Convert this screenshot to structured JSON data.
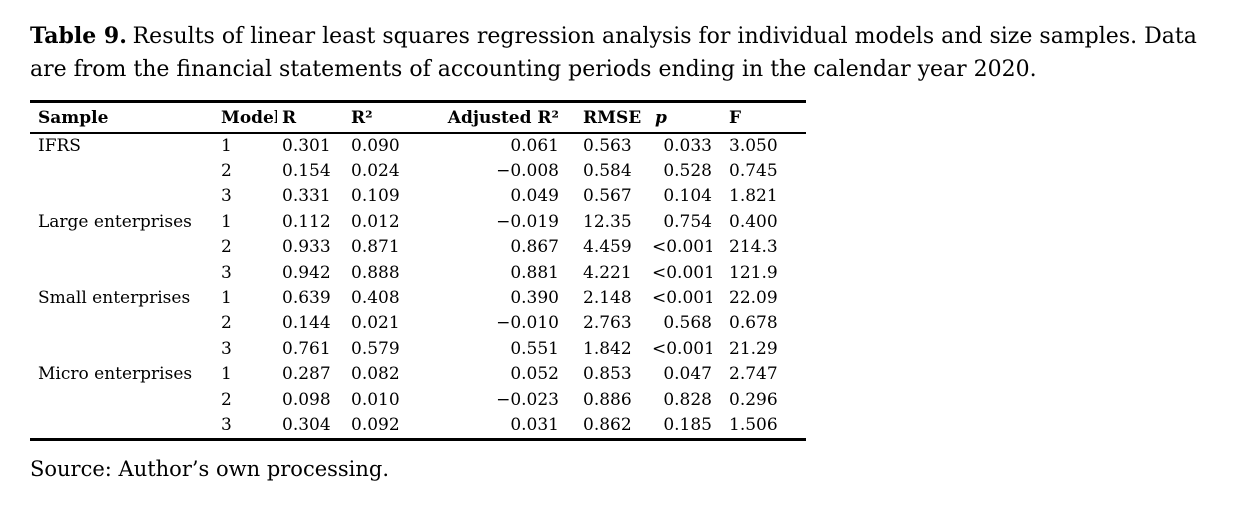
{
  "caption": {
    "label": "Table 9.",
    "text": "Results of linear least squares regression analysis for individual models and size samples. Data are from the financial statements of accounting periods ending in the calendar year 2020."
  },
  "table": {
    "columns": [
      {
        "key": "sample",
        "label": "Sample"
      },
      {
        "key": "model",
        "label": "Model"
      },
      {
        "key": "r",
        "label": "R"
      },
      {
        "key": "r2",
        "label": "R²"
      },
      {
        "key": "adj_r2",
        "label": "Adjusted R²"
      },
      {
        "key": "rmse",
        "label": "RMSE"
      },
      {
        "key": "p",
        "label": "p"
      },
      {
        "key": "f",
        "label": "F"
      }
    ],
    "rows": [
      {
        "sample": "IFRS",
        "model": "1",
        "r": "0.301",
        "r2": "0.090",
        "adj_r2": "0.061",
        "rmse": "0.563",
        "p": "0.033",
        "f": "3.050"
      },
      {
        "sample": "",
        "model": "2",
        "r": "0.154",
        "r2": "0.024",
        "adj_r2": "−0.008",
        "rmse": "0.584",
        "p": "0.528",
        "f": "0.745"
      },
      {
        "sample": "",
        "model": "3",
        "r": "0.331",
        "r2": "0.109",
        "adj_r2": "0.049",
        "rmse": "0.567",
        "p": "0.104",
        "f": "1.821"
      },
      {
        "sample": "Large enterprises",
        "model": "1",
        "r": "0.112",
        "r2": "0.012",
        "adj_r2": "−0.019",
        "rmse": "12.35",
        "p": "0.754",
        "f": "0.400"
      },
      {
        "sample": "",
        "model": "2",
        "r": "0.933",
        "r2": "0.871",
        "adj_r2": "0.867",
        "rmse": "4.459",
        "p": "<0.001",
        "f": "214.3"
      },
      {
        "sample": "",
        "model": "3",
        "r": "0.942",
        "r2": "0.888",
        "adj_r2": "0.881",
        "rmse": "4.221",
        "p": "<0.001",
        "f": "121.9"
      },
      {
        "sample": "Small enterprises",
        "model": "1",
        "r": "0.639",
        "r2": "0.408",
        "adj_r2": "0.390",
        "rmse": "2.148",
        "p": "<0.001",
        "f": "22.09"
      },
      {
        "sample": "",
        "model": "2",
        "r": "0.144",
        "r2": "0.021",
        "adj_r2": "−0.010",
        "rmse": "2.763",
        "p": "0.568",
        "f": "0.678"
      },
      {
        "sample": "",
        "model": "3",
        "r": "0.761",
        "r2": "0.579",
        "adj_r2": "0.551",
        "rmse": "1.842",
        "p": "<0.001",
        "f": "21.29"
      },
      {
        "sample": "Micro enterprises",
        "model": "1",
        "r": "0.287",
        "r2": "0.082",
        "adj_r2": "0.052",
        "rmse": "0.853",
        "p": "0.047",
        "f": "2.747"
      },
      {
        "sample": "",
        "model": "2",
        "r": "0.098",
        "r2": "0.010",
        "adj_r2": "−0.023",
        "rmse": "0.886",
        "p": "0.828",
        "f": "0.296"
      },
      {
        "sample": "",
        "model": "3",
        "r": "0.304",
        "r2": "0.092",
        "adj_r2": "0.031",
        "rmse": "0.862",
        "p": "0.185",
        "f": "1.506"
      }
    ]
  },
  "source_note": "Source: Author’s own processing."
}
